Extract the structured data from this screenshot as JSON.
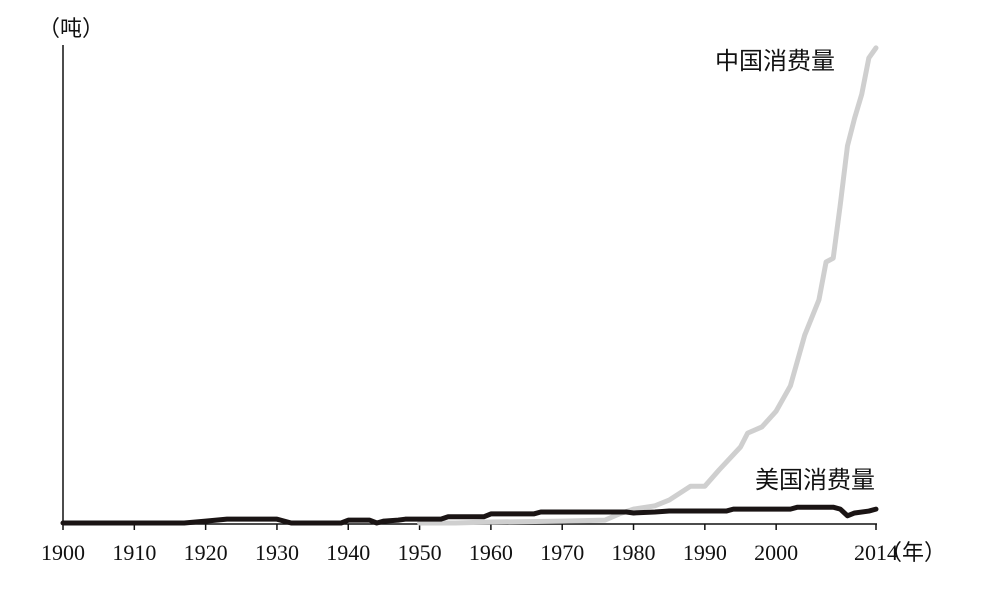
{
  "chart_data": {
    "type": "line",
    "y_label": "（吨）",
    "x_label": "（年）",
    "xlim": [
      1900,
      2014
    ],
    "xticks": [
      1900,
      1910,
      1920,
      1930,
      1940,
      1950,
      1960,
      1970,
      1980,
      1990,
      2000,
      2014
    ],
    "ylim": [
      0,
      100
    ],
    "series": [
      {
        "name": "中国消费量",
        "color": "#cfcfcf",
        "x": [
          1950,
          1955,
          1960,
          1970,
          1976,
          1978,
          1980,
          1983,
          1985,
          1988,
          1990,
          1992,
          1995,
          1996,
          1998,
          2000,
          2002,
          2004,
          2006,
          2007,
          2008,
          2009,
          2010,
          2011,
          2012,
          2013,
          2014
        ],
        "values": [
          0,
          0,
          0.2,
          0.4,
          0.6,
          1.9,
          2.9,
          3.6,
          4.8,
          7.7,
          7.7,
          11.1,
          15.9,
          18.8,
          20.1,
          23.4,
          28.7,
          39.3,
          46.7,
          54.6,
          55.4,
          66.7,
          78.9,
          84.7,
          89.7,
          97.3,
          99.4
        ]
      },
      {
        "name": "美国消费量",
        "color": "#1a1414",
        "x": [
          1900,
          1917,
          1920,
          1923,
          1930,
          1932,
          1939,
          1940,
          1943,
          1944,
          1945,
          1947,
          1948,
          1953,
          1954,
          1959,
          1960,
          1966,
          1967,
          1979,
          1980,
          1983,
          1985,
          1993,
          1994,
          2002,
          2003,
          2008,
          2009,
          2010,
          2011,
          2013,
          2014
        ],
        "values": [
          0,
          0,
          0.4,
          0.8,
          0.8,
          0,
          0,
          0.6,
          0.6,
          0,
          0.4,
          0.6,
          0.8,
          0.8,
          1.3,
          1.3,
          1.9,
          1.9,
          2.3,
          2.3,
          2.1,
          2.3,
          2.5,
          2.5,
          2.9,
          2.9,
          3.3,
          3.3,
          2.9,
          1.5,
          2.1,
          2.5,
          2.9
        ]
      }
    ]
  }
}
